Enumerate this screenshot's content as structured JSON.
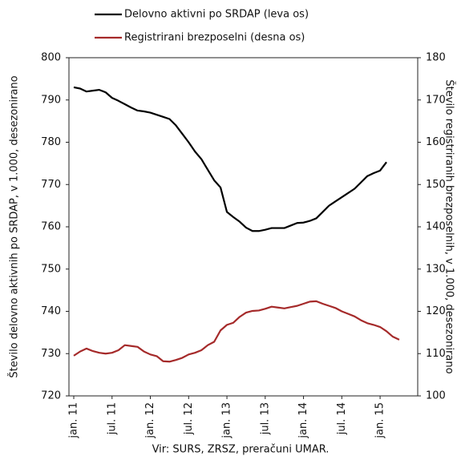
{
  "chart_data": {
    "type": "line",
    "categories": [
      "jan. 11",
      null,
      null,
      null,
      null,
      null,
      "jul. 11",
      null,
      null,
      null,
      null,
      null,
      "jan. 12",
      null,
      null,
      null,
      null,
      null,
      "jul. 12",
      null,
      null,
      null,
      null,
      null,
      "jan. 13",
      null,
      null,
      null,
      null,
      null,
      "jul. 13",
      null,
      null,
      null,
      null,
      null,
      "jan. 14",
      null,
      null,
      null,
      null,
      null,
      "jul. 14",
      null,
      null,
      null,
      null,
      null,
      "jan. 15",
      null,
      null,
      null
    ],
    "series": [
      {
        "name": "Delovno aktivni po SRDAP (leva os)",
        "color": "#000000",
        "axis": "y",
        "values": [
          793,
          792.7,
          792,
          792.2,
          792.4,
          791.8,
          790.5,
          789.8,
          789,
          788.2,
          787.5,
          787.3,
          787,
          786.5,
          786,
          785.5,
          784,
          782,
          780,
          777.8,
          776,
          773.5,
          771,
          769.3,
          763.5,
          762.3,
          761.2,
          759.8,
          759,
          759,
          759.3,
          759.7,
          759.7,
          759.7,
          760.3,
          760.9,
          761,
          761.4,
          762,
          763.5,
          765,
          766,
          767,
          768,
          769,
          770.5,
          772,
          772.7,
          773.3,
          775.3,
          null,
          null
        ]
      },
      {
        "name": "Registrirani brezposelni (desna os)",
        "color": "#a52a2a",
        "axis": "y2",
        "values": [
          109.5,
          110.5,
          111.2,
          110.6,
          110.2,
          110,
          110.2,
          110.8,
          112,
          111.8,
          111.6,
          110.5,
          109.8,
          109.4,
          108.2,
          108.1,
          108.5,
          109,
          109.8,
          110.2,
          110.8,
          112,
          112.8,
          115.5,
          116.8,
          117.3,
          118.7,
          119.7,
          120.1,
          120.2,
          120.6,
          121.1,
          120.9,
          120.7,
          121,
          121.3,
          121.8,
          122.3,
          122.4,
          121.8,
          121.3,
          120.8,
          120,
          119.4,
          118.8,
          117.9,
          117.2,
          116.8,
          116.3,
          115.3,
          114,
          113.3
        ]
      }
    ],
    "ylim": [
      720,
      800
    ],
    "yticks": [
      720,
      730,
      740,
      750,
      760,
      770,
      780,
      790,
      800
    ],
    "y2lim": [
      100,
      180
    ],
    "y2ticks": [
      100,
      110,
      120,
      130,
      140,
      150,
      160,
      170,
      180
    ],
    "ylabel": "Število delovno aktivnih po SRDAP, v 1.000, desezonirano",
    "y2label": "Število registriranih brezposelnih, v 1.000, desezonirano",
    "source": "Vir: SURS, ZRSZ, preračuni UMAR.",
    "grid": false
  }
}
